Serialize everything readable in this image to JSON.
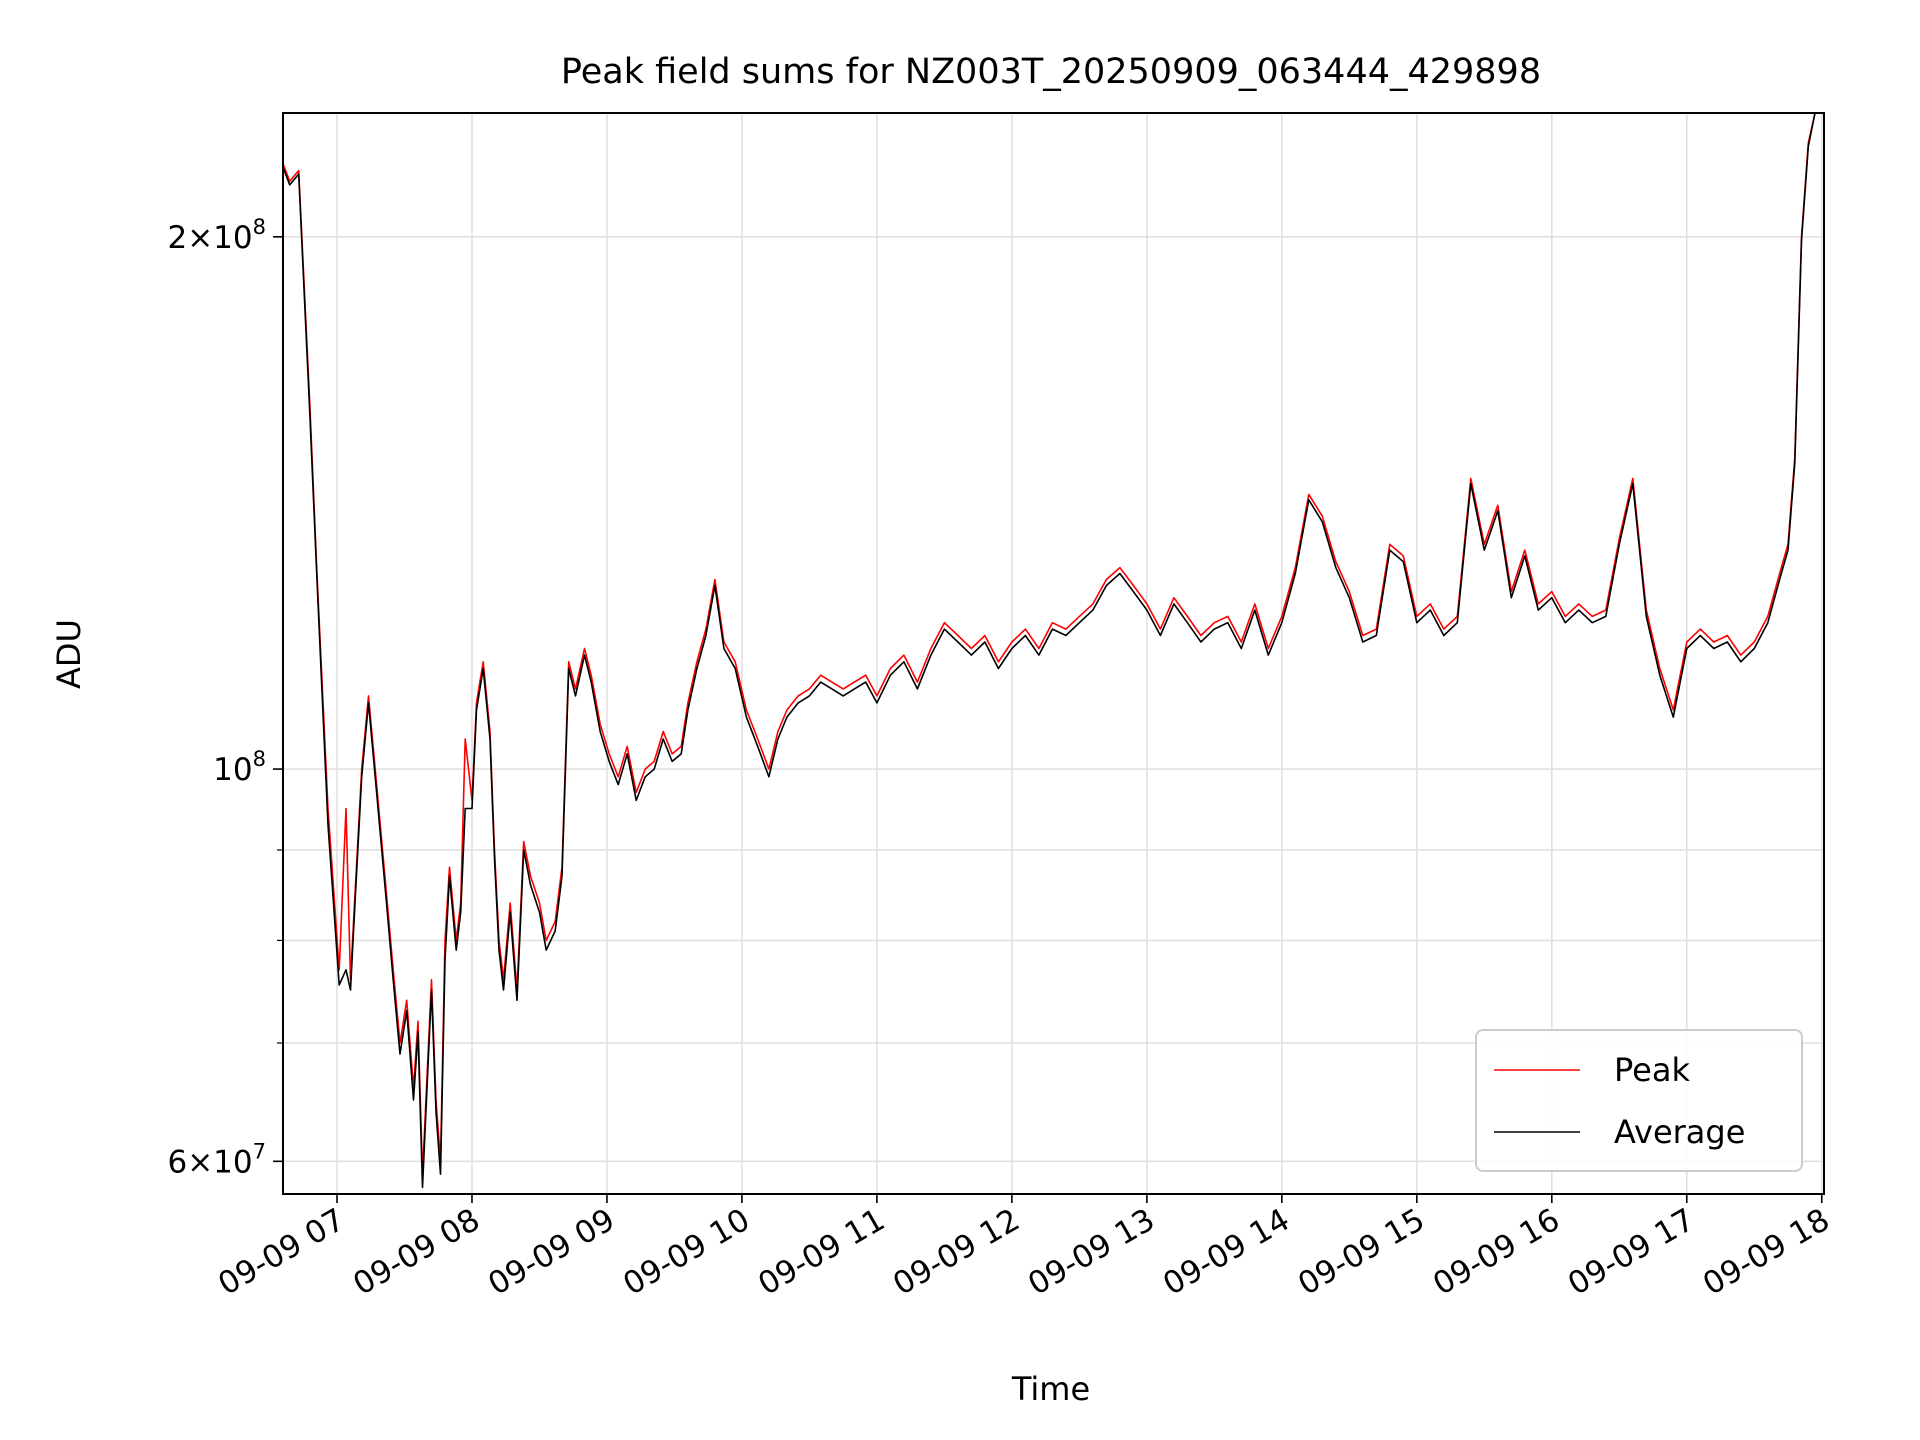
{
  "chart_data": {
    "type": "line",
    "title": "Peak field sums for NZ003T_20250909_063444_429898",
    "xlabel": "Time",
    "ylabel": "ADU",
    "y_scale": "log",
    "grid": true,
    "legend_position": "lower-right",
    "xlim": [
      "2025-09-09 06:36",
      "2025-09-09 18:01"
    ],
    "ylim": [
      57500000,
      235000000
    ],
    "x_ticks": [
      "09-09 07",
      "09-09 08",
      "09-09 09",
      "09-09 10",
      "09-09 11",
      "09-09 12",
      "09-09 13",
      "09-09 14",
      "09-09 15",
      "09-09 16",
      "09-09 17",
      "09-09 18"
    ],
    "y_ticks": [
      {
        "value": 60000000,
        "mantissa": "6",
        "exponent": "7"
      },
      {
        "value": 100000000,
        "mantissa": "",
        "exponent": "8"
      },
      {
        "value": 200000000,
        "mantissa": "2",
        "exponent": "8"
      }
    ],
    "y_minor_ticks": [
      70000000,
      80000000,
      90000000
    ],
    "x_time": [
      "06:36",
      "06:39",
      "06:43",
      "06:48",
      "06:51",
      "06:56",
      "07:01",
      "07:04",
      "07:06",
      "07:08",
      "07:11",
      "07:14",
      "07:17",
      "07:22",
      "07:25",
      "07:28",
      "07:31",
      "07:34",
      "07:36",
      "07:38",
      "07:40",
      "07:42",
      "07:44",
      "07:46",
      "07:48",
      "07:50",
      "07:53",
      "07:55",
      "07:57",
      "08:00",
      "08:02",
      "08:05",
      "08:08",
      "08:10",
      "08:12",
      "08:14",
      "08:17",
      "08:20",
      "08:23",
      "08:26",
      "08:30",
      "08:33",
      "08:37",
      "08:40",
      "08:43",
      "08:46",
      "08:50",
      "08:53",
      "08:57",
      "09:01",
      "09:05",
      "09:09",
      "09:13",
      "09:17",
      "09:21",
      "09:25",
      "09:29",
      "09:33",
      "09:36",
      "09:40",
      "09:44",
      "09:48",
      "09:52",
      "09:57",
      "10:02",
      "10:07",
      "10:12",
      "10:16",
      "10:20",
      "10:25",
      "10:30",
      "10:35",
      "10:40",
      "10:45",
      "10:50",
      "10:55",
      "11:00",
      "11:06",
      "11:12",
      "11:18",
      "11:24",
      "11:30",
      "11:36",
      "11:42",
      "11:48",
      "11:54",
      "12:00",
      "12:06",
      "12:12",
      "12:18",
      "12:24",
      "12:30",
      "12:36",
      "12:42",
      "12:48",
      "12:54",
      "13:00",
      "13:06",
      "13:12",
      "13:18",
      "13:24",
      "13:30",
      "13:36",
      "13:42",
      "13:48",
      "13:54",
      "14:00",
      "14:06",
      "14:12",
      "14:18",
      "14:24",
      "14:30",
      "14:36",
      "14:42",
      "14:48",
      "14:54",
      "15:00",
      "15:06",
      "15:12",
      "15:18",
      "15:24",
      "15:30",
      "15:36",
      "15:42",
      "15:48",
      "15:54",
      "16:00",
      "16:06",
      "16:12",
      "16:18",
      "16:24",
      "16:30",
      "16:36",
      "16:42",
      "16:48",
      "16:54",
      "17:00",
      "17:06",
      "17:12",
      "17:18",
      "17:24",
      "17:30",
      "17:36",
      "17:42",
      "17:45",
      "17:48",
      "17:51",
      "17:54",
      "17:57",
      "18:01"
    ],
    "series": [
      {
        "name": "Peak",
        "color": "#ff0000",
        "values": [
          220000000,
          215000000,
          218000000,
          160000000,
          130000000,
          95000000,
          77000000,
          95000000,
          76000000,
          85000000,
          100000000,
          110000000,
          100000000,
          85000000,
          77000000,
          70000000,
          74000000,
          66000000,
          72000000,
          59000000,
          67000000,
          76000000,
          65000000,
          60000000,
          80000000,
          88000000,
          80000000,
          84000000,
          104000000,
          96000000,
          109000000,
          115000000,
          105000000,
          90000000,
          80000000,
          76000000,
          84000000,
          75000000,
          91000000,
          87000000,
          84000000,
          80000000,
          82000000,
          88000000,
          115000000,
          111000000,
          117000000,
          113000000,
          106000000,
          102000000,
          99000000,
          103000000,
          97000000,
          100000000,
          101000000,
          105000000,
          102000000,
          103000000,
          109000000,
          115000000,
          120000000,
          128000000,
          118000000,
          115000000,
          108000000,
          104000000,
          100000000,
          105000000,
          108000000,
          110000000,
          111000000,
          113000000,
          112000000,
          111000000,
          112000000,
          113000000,
          110000000,
          114000000,
          116000000,
          112000000,
          117000000,
          121000000,
          119000000,
          117000000,
          119000000,
          115000000,
          118000000,
          120000000,
          117000000,
          121000000,
          120000000,
          122000000,
          124000000,
          128000000,
          130000000,
          127000000,
          124000000,
          120000000,
          125000000,
          122000000,
          119000000,
          121000000,
          122000000,
          118000000,
          124000000,
          117000000,
          122000000,
          130000000,
          143000000,
          139000000,
          131000000,
          126000000,
          119000000,
          120000000,
          134000000,
          132000000,
          122000000,
          124000000,
          120000000,
          122000000,
          146000000,
          134000000,
          141000000,
          126000000,
          133000000,
          124000000,
          126000000,
          122000000,
          124000000,
          122000000,
          123000000,
          135000000,
          146000000,
          123000000,
          114000000,
          108000000,
          118000000,
          120000000,
          118000000,
          119000000,
          116000000,
          118000000,
          122000000,
          130000000,
          134000000,
          150000000,
          200000000,
          226000000,
          235000000
        ]
      },
      {
        "name": "Average",
        "color": "#000000",
        "values": [
          219000000,
          214000000,
          217000000,
          158000000,
          129000000,
          93000000,
          75500000,
          77000000,
          75000000,
          84000000,
          99000000,
          109000000,
          99000000,
          84000000,
          76000000,
          69000000,
          73000000,
          65000000,
          71000000,
          58000000,
          66000000,
          75000000,
          64000000,
          59000000,
          78000000,
          87000000,
          79000000,
          83000000,
          95000000,
          95000000,
          108000000,
          114000000,
          104000000,
          89000000,
          79000000,
          75000000,
          83000000,
          74000000,
          90000000,
          86000000,
          83000000,
          79000000,
          81000000,
          87000000,
          114000000,
          110000000,
          116000000,
          112000000,
          105000000,
          101000000,
          98000000,
          102000000,
          96000000,
          99000000,
          100000000,
          104000000,
          101000000,
          102000000,
          108000000,
          114000000,
          119000000,
          127000000,
          117000000,
          114000000,
          107000000,
          103000000,
          99000000,
          104000000,
          107000000,
          109000000,
          110000000,
          112000000,
          111000000,
          110000000,
          111000000,
          112000000,
          109000000,
          113000000,
          115000000,
          111000000,
          116000000,
          120000000,
          118000000,
          116000000,
          118000000,
          114000000,
          117000000,
          119000000,
          116000000,
          120000000,
          119000000,
          121000000,
          123000000,
          127000000,
          129000000,
          126000000,
          123000000,
          119000000,
          124000000,
          121000000,
          118000000,
          120000000,
          121000000,
          117000000,
          123000000,
          116000000,
          121000000,
          129000000,
          142000000,
          138000000,
          130000000,
          125000000,
          118000000,
          119000000,
          133000000,
          131000000,
          121000000,
          123000000,
          119000000,
          121000000,
          145000000,
          133000000,
          140000000,
          125000000,
          132000000,
          123000000,
          125000000,
          121000000,
          123000000,
          121000000,
          122000000,
          134000000,
          145000000,
          122000000,
          113000000,
          107000000,
          117000000,
          119000000,
          117000000,
          118000000,
          115000000,
          117000000,
          121000000,
          129000000,
          133000000,
          149000000,
          199000000,
          225000000,
          235000000
        ]
      }
    ]
  }
}
